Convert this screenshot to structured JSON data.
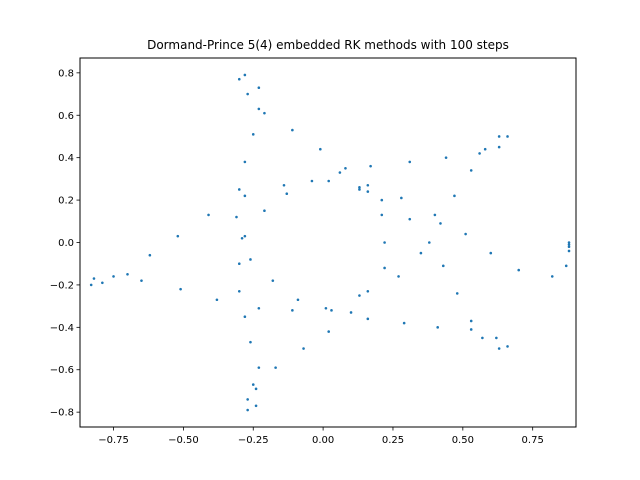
{
  "chart_data": {
    "type": "scatter",
    "title": "Dormand-Prince 5(4) embedded RK methods with 100 steps",
    "xlabel": "",
    "ylabel": "",
    "xlim": [
      -0.87,
      0.905
    ],
    "ylim": [
      -0.87,
      0.87
    ],
    "xticks": [
      -0.75,
      -0.5,
      -0.25,
      0.0,
      0.25,
      0.5,
      0.75
    ],
    "xtick_labels": [
      "−0.75",
      "−0.50",
      "−0.25",
      "0.00",
      "0.25",
      "0.50",
      "0.75"
    ],
    "yticks": [
      -0.8,
      -0.6,
      -0.4,
      -0.2,
      0.0,
      0.2,
      0.4,
      0.6,
      0.8
    ],
    "ytick_labels": [
      "−0.8",
      "−0.6",
      "−0.4",
      "−0.2",
      "0.0",
      "0.2",
      "0.4",
      "0.6",
      "0.8"
    ],
    "grid": false,
    "marker_color": "#1f77b4",
    "points": [
      [
        -0.28,
        0.79
      ],
      [
        -0.3,
        0.77
      ],
      [
        -0.23,
        0.73
      ],
      [
        -0.27,
        0.7
      ],
      [
        -0.23,
        0.63
      ],
      [
        -0.21,
        0.61
      ],
      [
        -0.25,
        0.51
      ],
      [
        -0.11,
        0.53
      ],
      [
        -0.01,
        0.44
      ],
      [
        -0.28,
        0.38
      ],
      [
        -0.14,
        0.27
      ],
      [
        -0.13,
        0.23
      ],
      [
        -0.3,
        0.25
      ],
      [
        -0.28,
        0.22
      ],
      [
        -0.21,
        0.15
      ],
      [
        -0.41,
        0.13
      ],
      [
        -0.31,
        0.12
      ],
      [
        -0.29,
        0.02
      ],
      [
        -0.28,
        0.03
      ],
      [
        -0.52,
        0.03
      ],
      [
        -0.26,
        -0.08
      ],
      [
        -0.3,
        -0.1
      ],
      [
        -0.62,
        -0.06
      ],
      [
        -0.18,
        -0.18
      ],
      [
        -0.83,
        -0.2
      ],
      [
        -0.82,
        -0.17
      ],
      [
        -0.79,
        -0.19
      ],
      [
        -0.75,
        -0.16
      ],
      [
        -0.7,
        -0.15
      ],
      [
        -0.65,
        -0.18
      ],
      [
        -0.51,
        -0.22
      ],
      [
        -0.38,
        -0.27
      ],
      [
        -0.3,
        -0.23
      ],
      [
        -0.23,
        -0.31
      ],
      [
        -0.28,
        -0.35
      ],
      [
        -0.26,
        -0.47
      ],
      [
        -0.23,
        -0.59
      ],
      [
        -0.17,
        -0.59
      ],
      [
        -0.09,
        -0.27
      ],
      [
        -0.11,
        -0.32
      ],
      [
        -0.07,
        -0.5
      ],
      [
        0.01,
        -0.31
      ],
      [
        0.03,
        -0.32
      ],
      [
        0.02,
        -0.42
      ],
      [
        0.1,
        -0.33
      ],
      [
        0.13,
        -0.25
      ],
      [
        0.16,
        -0.23
      ],
      [
        0.16,
        -0.36
      ],
      [
        0.29,
        -0.38
      ],
      [
        0.27,
        -0.16
      ],
      [
        0.22,
        -0.12
      ],
      [
        0.22,
        0.0
      ],
      [
        0.21,
        0.13
      ],
      [
        0.21,
        0.2
      ],
      [
        0.28,
        0.21
      ],
      [
        0.31,
        0.11
      ],
      [
        0.35,
        -0.05
      ],
      [
        0.38,
        0.0
      ],
      [
        0.4,
        0.13
      ],
      [
        0.42,
        0.09
      ],
      [
        0.43,
        -0.11
      ],
      [
        0.48,
        -0.24
      ],
      [
        0.51,
        0.04
      ],
      [
        0.53,
        -0.37
      ],
      [
        0.53,
        -0.41
      ],
      [
        0.41,
        -0.4
      ],
      [
        0.57,
        -0.45
      ],
      [
        0.62,
        -0.45
      ],
      [
        0.63,
        -0.5
      ],
      [
        0.66,
        -0.49
      ],
      [
        0.6,
        -0.05
      ],
      [
        0.7,
        -0.13
      ],
      [
        0.82,
        -0.16
      ],
      [
        0.87,
        -0.11
      ],
      [
        0.88,
        -0.04
      ],
      [
        0.88,
        -0.02
      ],
      [
        0.88,
        -0.01
      ],
      [
        0.88,
        0.0
      ],
      [
        0.66,
        0.5
      ],
      [
        0.63,
        0.5
      ],
      [
        0.63,
        0.45
      ],
      [
        0.58,
        0.44
      ],
      [
        0.56,
        0.42
      ],
      [
        0.53,
        0.34
      ],
      [
        0.47,
        0.22
      ],
      [
        0.44,
        0.4
      ],
      [
        0.31,
        0.38
      ],
      [
        0.17,
        0.36
      ],
      [
        0.16,
        0.27
      ],
      [
        0.16,
        0.24
      ],
      [
        0.13,
        0.25
      ],
      [
        0.13,
        0.26
      ],
      [
        0.08,
        0.35
      ],
      [
        0.06,
        0.33
      ],
      [
        0.02,
        0.29
      ],
      [
        -0.04,
        0.29
      ],
      [
        -0.25,
        -0.67
      ],
      [
        -0.24,
        -0.69
      ],
      [
        -0.27,
        -0.74
      ],
      [
        -0.27,
        -0.79
      ],
      [
        -0.24,
        -0.77
      ]
    ]
  }
}
